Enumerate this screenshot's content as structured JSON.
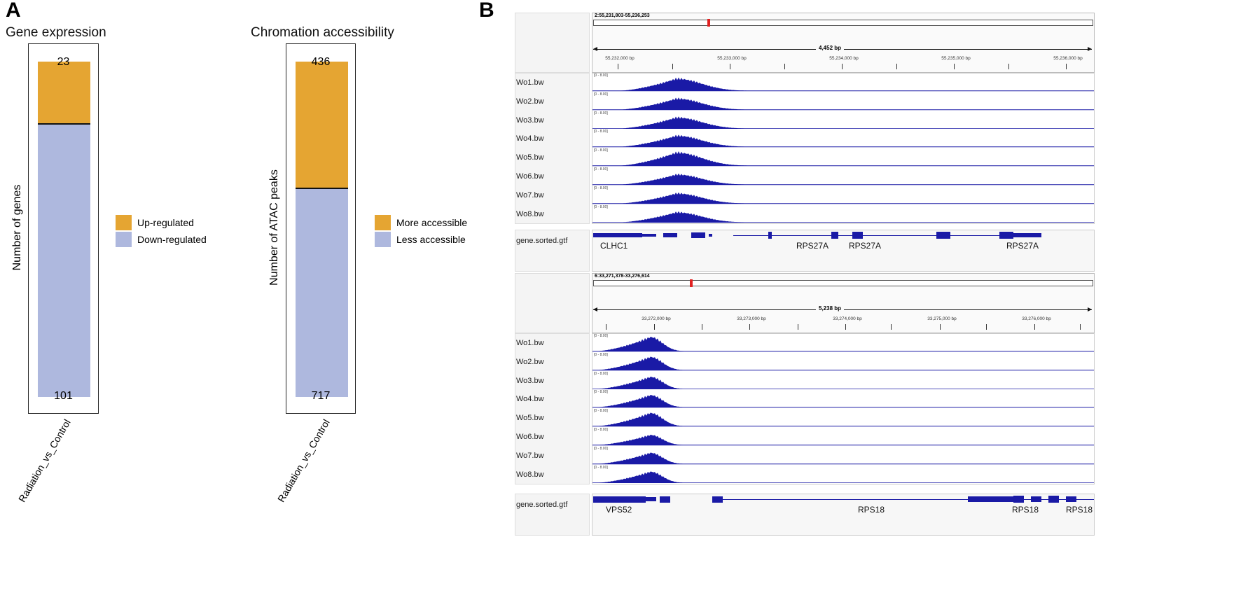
{
  "panel_a_label": "A",
  "panel_b_label": "B",
  "colors": {
    "up": "#E5A532",
    "down": "#AEB8DE",
    "track": "#1A1AA6"
  },
  "chart_data": [
    {
      "type": "bar",
      "stacked": true,
      "title": "Gene expression",
      "ylabel": "Number of genes",
      "categories": [
        "Radiation_vs_Control"
      ],
      "series": [
        {
          "name": "Up-regulated",
          "values": [
            23
          ]
        },
        {
          "name": "Down-regulated",
          "values": [
            101
          ]
        }
      ],
      "legend": "right"
    },
    {
      "type": "bar",
      "stacked": true,
      "title": "Chromation accessibility",
      "ylabel": "Number of ATAC peaks",
      "categories": [
        "Radiation_vs_Control"
      ],
      "series": [
        {
          "name": "More accessible",
          "values": [
            436
          ]
        },
        {
          "name": "Less accessible",
          "values": [
            717
          ]
        }
      ],
      "legend": "right"
    }
  ],
  "igv": [
    {
      "locus": "2:55,231,803-55,236,253",
      "span": "4,452 bp",
      "ticks": [
        "55,232,000 bp",
        "55,233,000 bp",
        "55,234,000 bp",
        "55,235,000 bp",
        "55,236,000 bp"
      ],
      "tracks": [
        "Wo1.bw",
        "Wo2.bw",
        "Wo3.bw",
        "Wo4.bw",
        "Wo5.bw",
        "Wo6.bw",
        "Wo7.bw",
        "Wo8.bw"
      ],
      "range": "[0 - 8.00]",
      "peak_heights": [
        0.6,
        0.55,
        0.55,
        0.55,
        0.65,
        0.5,
        0.5,
        0.5
      ],
      "gene_track": "gene.sorted.gtf",
      "genes": [
        "CLHC1",
        "RPS27A",
        "RPS27A",
        "RPS27A"
      ]
    },
    {
      "locus": "6:33,271,378-33,276,614",
      "span": "5,238 bp",
      "ticks": [
        "33,272,000 bp",
        "33,273,000 bp",
        "33,274,000 bp",
        "33,275,000 bp",
        "33,276,000 bp"
      ],
      "tracks": [
        "Wo1.bw",
        "Wo2.bw",
        "Wo3.bw",
        "Wo4.bw",
        "Wo5.bw",
        "Wo6.bw",
        "Wo7.bw",
        "Wo8.bw"
      ],
      "range": "[0 - 8.00]",
      "peak_heights": [
        0.7,
        0.65,
        0.6,
        0.6,
        0.65,
        0.5,
        0.55,
        0.55
      ],
      "gene_track": "gene.sorted.gtf",
      "genes": [
        "VPS52",
        "RPS18",
        "RPS18",
        "RPS18"
      ]
    }
  ]
}
